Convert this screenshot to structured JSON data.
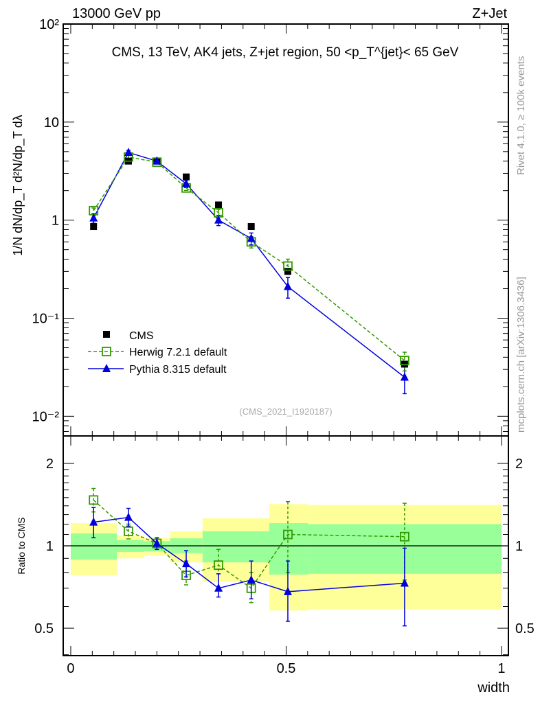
{
  "header": {
    "left": "13000 GeV pp",
    "right": "Z+Jet"
  },
  "side": {
    "rivet": "Rivet 4.1.0, ≥ 100k events",
    "mcplots": "mcplots.cern.ch [arXiv:1306.3436]"
  },
  "chart_data": [
    {
      "type": "line",
      "title": "CMS, 13 TeV, AK4 jets, Z+jet region, 50 <p_T^{jet}< 65 GeV",
      "watermark": "(CMS_2021_I1920187)",
      "ylabel": "1/N dN/dp_T d²N/dp_T dλ",
      "yscale": "log",
      "ylim": [
        0.0063,
        100
      ],
      "xlim": [
        -0.0175,
        1.016
      ],
      "ytick_labels": [
        "10⁻²",
        "10⁻¹",
        "1",
        "10",
        "10²"
      ],
      "ytick_values": [
        0.01,
        0.1,
        1,
        10,
        100
      ],
      "legend_position": "bottom-left",
      "x": [
        0.053,
        0.134,
        0.2,
        0.268,
        0.343,
        0.419,
        0.504,
        0.775
      ],
      "series": [
        {
          "name": "CMS",
          "color": "#000000",
          "marker": "square",
          "values": [
            0.86,
            4.0,
            4.0,
            2.76,
            1.43,
            0.86,
            0.3,
            0.034
          ]
        },
        {
          "name": "Herwig 7.2.1 default",
          "color": "#339900",
          "marker": "open-square",
          "dashed": true,
          "values": [
            1.25,
            4.4,
            3.9,
            2.13,
            1.19,
            0.6,
            0.34,
            0.037
          ],
          "err": [
            0.08,
            0.2,
            0.15,
            0.12,
            0.1,
            0.08,
            0.06,
            0.008
          ]
        },
        {
          "name": "Pythia 8.315 default",
          "color": "#0000dd",
          "marker": "triangle",
          "values": [
            1.05,
            4.9,
            4.0,
            2.35,
            1.0,
            0.65,
            0.21,
            0.025
          ],
          "err": [
            0.12,
            0.25,
            0.2,
            0.2,
            0.12,
            0.09,
            0.05,
            0.008
          ]
        }
      ]
    },
    {
      "type": "line",
      "ylabel": "Ratio to CMS",
      "xlabel": "width",
      "yscale": "log",
      "ylim": [
        0.397,
        2.52
      ],
      "xlim": [
        -0.0175,
        1.016
      ],
      "ytick_labels": [
        "0.5",
        "1",
        "2"
      ],
      "ytick_values": [
        0.5,
        1,
        2
      ],
      "xtick_labels": [
        "0",
        "0.5",
        "1"
      ],
      "xtick_values": [
        0,
        0.5,
        1
      ],
      "bins": [
        0,
        0.107,
        0.17,
        0.231,
        0.306,
        0.461,
        0.551,
        1.0
      ],
      "band_yellow": [
        [
          0.78,
          1.21
        ],
        [
          0.9,
          1.09
        ],
        [
          0.92,
          1.07
        ],
        [
          0.87,
          1.13
        ],
        [
          0.74,
          1.26
        ],
        [
          0.58,
          1.42
        ],
        [
          0.585,
          1.41
        ]
      ],
      "band_green": [
        [
          0.89,
          1.11
        ],
        [
          0.95,
          1.05
        ],
        [
          0.955,
          1.04
        ],
        [
          0.94,
          1.065
        ],
        [
          0.87,
          1.13
        ],
        [
          0.785,
          1.21
        ],
        [
          0.79,
          1.2
        ]
      ],
      "x": [
        0.053,
        0.134,
        0.2,
        0.268,
        0.343,
        0.419,
        0.504,
        0.775
      ],
      "series": [
        {
          "name": "Herwig 7.2.1 default",
          "color": "#339900",
          "values": [
            1.47,
            1.13,
            1.02,
            0.78,
            0.85,
            0.7,
            1.1,
            1.08
          ],
          "lo": [
            1.33,
            1.06,
            0.97,
            0.72,
            0.79,
            0.62,
            0.8,
            0.75
          ],
          "hi": [
            1.62,
            1.2,
            1.06,
            0.88,
            0.97,
            0.8,
            1.45,
            1.43
          ]
        },
        {
          "name": "Pythia 8.315 default",
          "color": "#0000dd",
          "values": [
            1.22,
            1.27,
            1.02,
            0.86,
            0.7,
            0.75,
            0.68,
            0.73
          ],
          "lo": [
            1.07,
            1.18,
            0.97,
            0.77,
            0.65,
            0.64,
            0.53,
            0.51
          ],
          "hi": [
            1.38,
            1.37,
            1.07,
            0.96,
            0.79,
            0.88,
            0.88,
            0.98
          ]
        }
      ]
    }
  ]
}
